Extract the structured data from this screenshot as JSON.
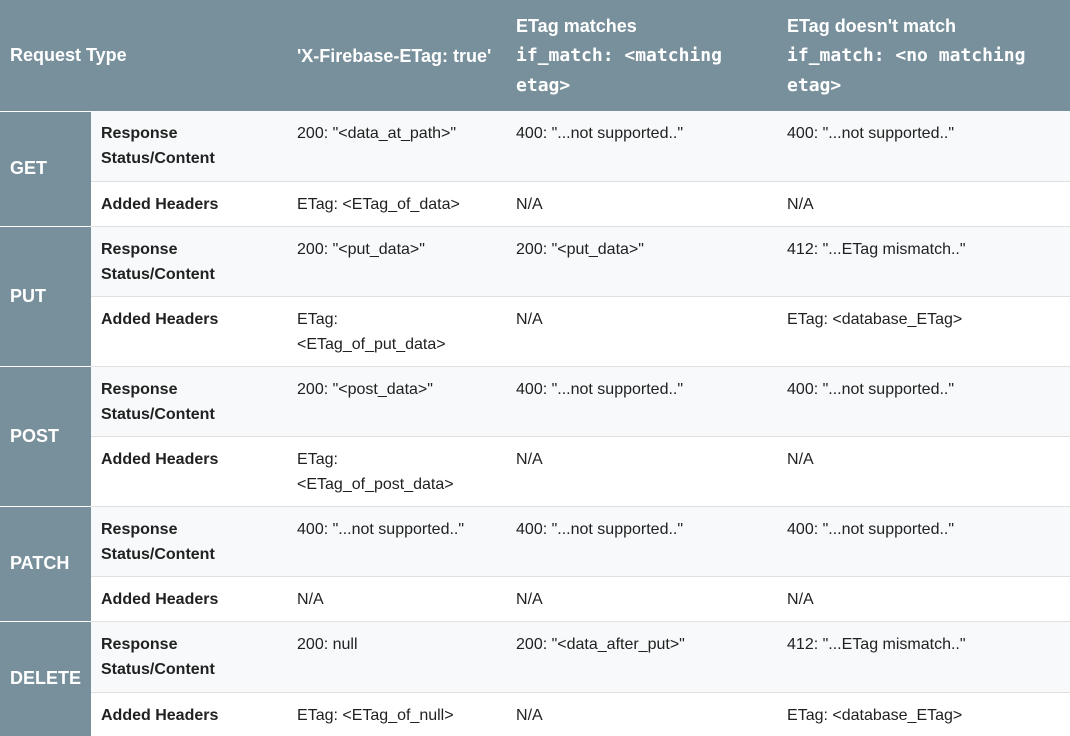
{
  "headers": {
    "request_type": "Request Type",
    "x_firebase": "'X-Firebase-ETag: true'",
    "match_title": "ETag matches",
    "match_code_1": "if_match: <matching",
    "match_code_2": "etag>",
    "nomatch_title": "ETag doesn't match",
    "nomatch_code_1": "if_match: <no matching",
    "nomatch_code_2": "etag>"
  },
  "rows": [
    {
      "method": "GET",
      "response": {
        "label_1": "Response",
        "label_2": "Status/Content",
        "x_firebase": "200: \"<data_at_path>\"",
        "match": "400: \"...not supported..\"",
        "nomatch": "400: \"...not supported..\""
      },
      "added": {
        "label": "Added Headers",
        "x_firebase_1": "ETag: <ETag_of_data>",
        "x_firebase_2": "",
        "match": "N/A",
        "nomatch": "N/A"
      }
    },
    {
      "method": "PUT",
      "response": {
        "label_1": "Response",
        "label_2": "Status/Content",
        "x_firebase": "200: \"<put_data>\"",
        "match": "200: \"<put_data>\"",
        "nomatch": "412: \"...ETag mismatch..\""
      },
      "added": {
        "label": "Added Headers",
        "x_firebase_1": "ETag:",
        "x_firebase_2": "<ETag_of_put_data>",
        "match": "N/A",
        "nomatch": "ETag: <database_ETag>"
      }
    },
    {
      "method": "POST",
      "response": {
        "label_1": "Response",
        "label_2": "Status/Content",
        "x_firebase": "200: \"<post_data>\"",
        "match": "400: \"...not supported..\"",
        "nomatch": "400: \"...not supported..\""
      },
      "added": {
        "label": "Added Headers",
        "x_firebase_1": "ETag:",
        "x_firebase_2": "<ETag_of_post_data>",
        "match": "N/A",
        "nomatch": "N/A"
      }
    },
    {
      "method": "PATCH",
      "response": {
        "label_1": "Response",
        "label_2": "Status/Content",
        "x_firebase": "400: \"...not supported..\"",
        "match": "400: \"...not supported..\"",
        "nomatch": "400: \"...not supported..\""
      },
      "added": {
        "label": "Added Headers",
        "x_firebase_1": "N/A",
        "x_firebase_2": "",
        "match": "N/A",
        "nomatch": "N/A"
      }
    },
    {
      "method": "DELETE",
      "response": {
        "label_1": "Response",
        "label_2": "Status/Content",
        "x_firebase": "200: null",
        "match": "200: \"<data_after_put>\"",
        "nomatch": "412: \"...ETag mismatch..\""
      },
      "added": {
        "label": "Added Headers",
        "x_firebase_1": "ETag: <ETag_of_null>",
        "x_firebase_2": "",
        "match": "N/A",
        "nomatch": "ETag: <database_ETag>"
      }
    }
  ]
}
